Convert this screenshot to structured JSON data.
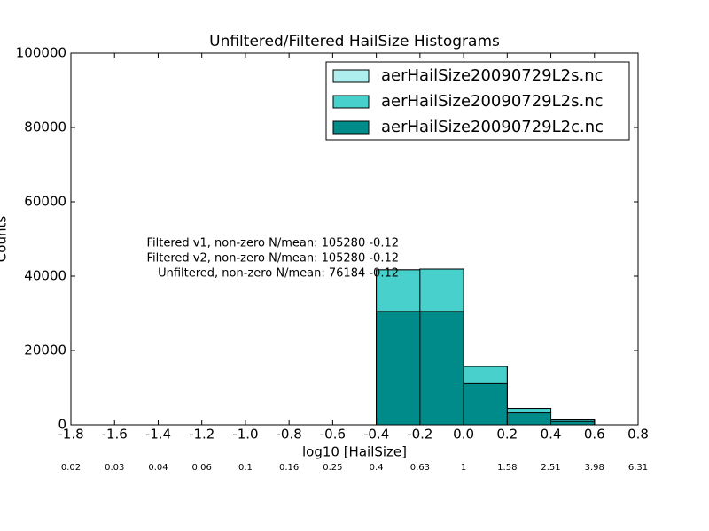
{
  "chart_data": {
    "type": "histogram",
    "title": "Unfiltered/Filtered HailSize Histograms",
    "xlabel": "log10 [HailSize]",
    "ylabel": "Counts",
    "bins": [
      -1.8,
      -1.6,
      -1.4,
      -1.2,
      -1.0,
      -0.8,
      -0.6,
      -0.4,
      -0.2,
      0.0,
      0.2,
      0.4,
      0.6,
      0.8
    ],
    "series": [
      {
        "name": "aerHailSize20090729L2s.nc",
        "color": "#afeeee",
        "values": [
          0,
          0,
          0,
          0,
          0,
          0,
          0,
          41700,
          41900,
          15700,
          4400,
          1300,
          0
        ]
      },
      {
        "name": "aerHailSize20090729L2s.nc",
        "color": "#48d1cc",
        "values": [
          0,
          0,
          0,
          0,
          0,
          0,
          0,
          41700,
          41900,
          15700,
          4400,
          1300,
          0
        ]
      },
      {
        "name": "aerHailSize20090729L2c.nc",
        "color": "#008b8b",
        "values": [
          0,
          0,
          0,
          0,
          0,
          0,
          0,
          30500,
          30500,
          11100,
          3200,
          900,
          0
        ]
      }
    ],
    "xlim": [
      -1.8,
      0.8
    ],
    "xticks": [
      -1.8,
      -1.6,
      -1.4,
      -1.2,
      {
        "value": -1.0,
        "label": "-1.0"
      },
      -0.8,
      -0.6,
      -0.4,
      -0.2,
      {
        "value": 0.0,
        "label": "0.0"
      },
      0.2,
      0.4,
      0.6,
      0.8
    ],
    "secondary_xticklabels": [
      "0.02",
      "0.03",
      "0.04",
      "0.06",
      "0.1",
      "0.16",
      "0.25",
      "0.4",
      "0.63",
      "1",
      "1.58",
      "2.51",
      "3.98",
      "6.31"
    ],
    "ylim": [
      0,
      100000
    ],
    "yticks": [
      0,
      20000,
      40000,
      60000,
      80000,
      100000
    ],
    "legend": "upper right",
    "annotations": [
      "Filtered v1, non-zero N/mean: 105280 -0.12",
      "Filtered v2, non-zero N/mean: 105280 -0.12",
      "Unfiltered, non-zero N/mean: 76184 -0.12"
    ]
  }
}
